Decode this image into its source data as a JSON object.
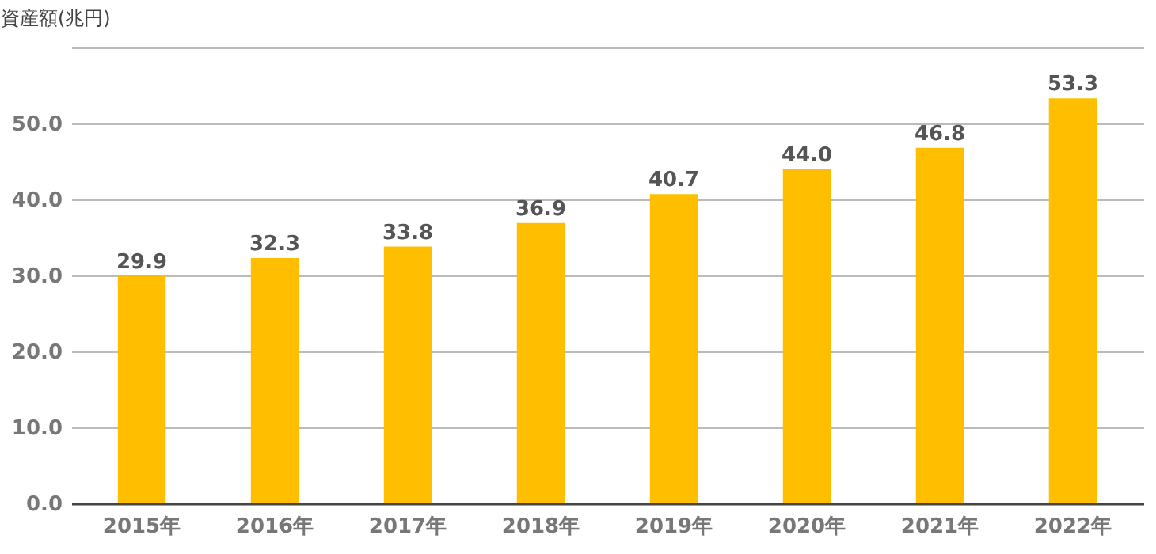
{
  "chart_data": {
    "type": "bar",
    "ylabel": "資産額(兆円)",
    "categories": [
      "2015年",
      "2016年",
      "2017年",
      "2018年",
      "2019年",
      "2020年",
      "2021年",
      "2022年"
    ],
    "values": [
      29.9,
      32.3,
      33.8,
      36.9,
      40.7,
      44.0,
      46.8,
      53.3
    ],
    "value_labels": [
      "29.9",
      "32.3",
      "33.8",
      "36.9",
      "40.7",
      "44.0",
      "46.8",
      "53.3"
    ],
    "color": "#ffbf00",
    "ylim": [
      0,
      60
    ],
    "yticks": [
      {
        "value": 0,
        "label": "0.0"
      },
      {
        "value": 10,
        "label": "10.0"
      },
      {
        "value": 20,
        "label": "20.0"
      },
      {
        "value": 30,
        "label": "30.0"
      },
      {
        "value": 40,
        "label": "40.0"
      },
      {
        "value": 50,
        "label": "50.0"
      },
      {
        "value": 60,
        "label": null
      }
    ],
    "grid": "y"
  }
}
